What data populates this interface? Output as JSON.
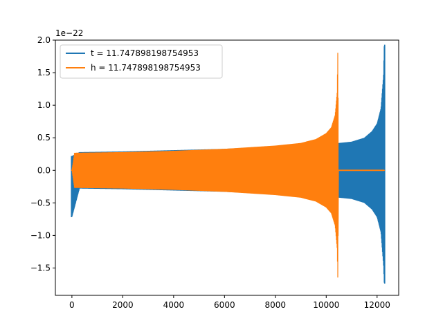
{
  "chart_data": {
    "type": "line",
    "title": "",
    "xlabel": "",
    "ylabel": "",
    "y_offset_label": "1e−22",
    "xlim": [
      -650,
      12850
    ],
    "ylim": [
      -1.92,
      2.0
    ],
    "x_ticks": [
      0,
      2000,
      4000,
      6000,
      8000,
      10000,
      12000
    ],
    "x_tick_labels": [
      "0",
      "2000",
      "4000",
      "6000",
      "8000",
      "10000",
      "12000"
    ],
    "y_ticks": [
      -1.5,
      -1.0,
      -0.5,
      0.0,
      0.5,
      1.0,
      1.5,
      2.0
    ],
    "y_tick_labels": [
      "−1.5",
      "−1.0",
      "−0.5",
      "0.0",
      "0.5",
      "1.0",
      "1.5",
      "2.0"
    ],
    "grid": false,
    "legend_position": "top-left",
    "series": [
      {
        "name": "t = 11.747898198754953",
        "color": "#1f77b4",
        "envelope": {
          "x": [
            0,
            300,
            2000,
            4000,
            6000,
            8000,
            9000,
            10000,
            10480,
            10500,
            11000,
            11500,
            11800,
            12000,
            12150,
            12250,
            12280
          ],
          "upper": [
            0.22,
            0.28,
            0.29,
            0.31,
            0.33,
            0.37,
            0.39,
            0.41,
            0.42,
            0.42,
            0.44,
            0.5,
            0.6,
            0.72,
            0.95,
            1.45,
            1.93
          ],
          "lower": [
            -0.72,
            -0.28,
            -0.29,
            -0.31,
            -0.33,
            -0.37,
            -0.39,
            -0.41,
            -0.42,
            -0.42,
            -0.44,
            -0.5,
            -0.6,
            -0.72,
            -0.95,
            -1.45,
            -1.74
          ]
        }
      },
      {
        "name": "h = 11.747898198754953",
        "color": "#ff7f0e",
        "envelope": {
          "x": [
            0,
            100,
            2000,
            4000,
            6000,
            8000,
            9000,
            9600,
            10000,
            10200,
            10350,
            10430,
            10460,
            10480,
            12280
          ],
          "upper": [
            0.0,
            0.27,
            0.28,
            0.3,
            0.33,
            0.38,
            0.42,
            0.48,
            0.57,
            0.66,
            0.85,
            1.2,
            1.93,
            0.0,
            0.0
          ],
          "lower": [
            0.0,
            -0.27,
            -0.28,
            -0.3,
            -0.33,
            -0.38,
            -0.42,
            -0.48,
            -0.57,
            -0.66,
            -0.85,
            -1.2,
            -1.74,
            0.0,
            0.0
          ]
        }
      }
    ]
  }
}
